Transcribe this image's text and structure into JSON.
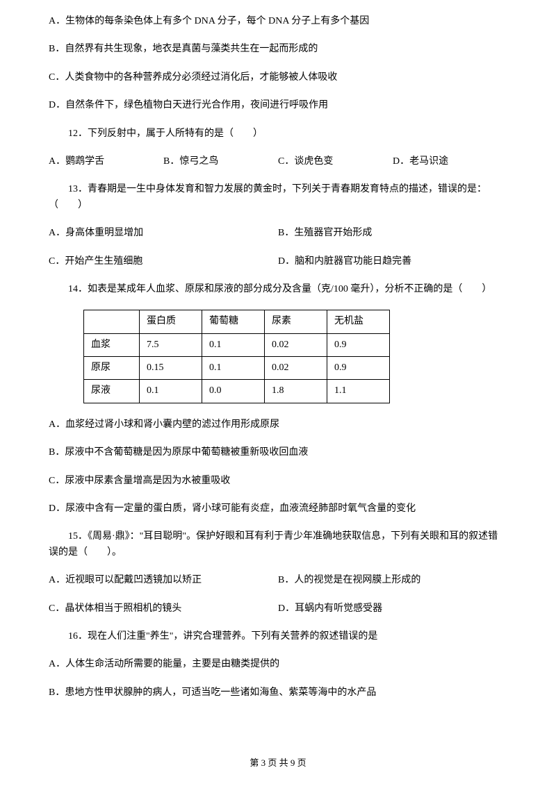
{
  "q11_options": {
    "a": "A．生物体的每条染色体上有多个 DNA 分子，每个 DNA 分子上有多个基因",
    "b": "B．自然界有共生现象，地衣是真菌与藻类共生在一起而形成的",
    "c": "C．人类食物中的各种营养成分必须经过消化后，才能够被人体吸收",
    "d": "D．自然条件下，绿色植物白天进行光合作用，夜间进行呼吸作用"
  },
  "q12": {
    "stem": "12．下列反射中，属于人所特有的是（　　）",
    "a": "A．鹦鹉学舌",
    "b": "B．惊弓之鸟",
    "c": "C．谈虎色变",
    "d": "D．老马识途"
  },
  "q13": {
    "stem": "13．青春期是一生中身体发育和智力发展的黄金时，下列关于青春期发育特点的描述，错误的是：（　　）",
    "a": "A．身高体重明显增加",
    "b": "B．生殖器官开始形成",
    "c": "C．开始产生生殖细胞",
    "d": "D．脑和内脏器官功能日趋完善"
  },
  "q14": {
    "stem": "14．如表是某成年人血浆、原尿和尿液的部分成分及含量（克/100 毫升），分析不正确的是（　　）",
    "headers": [
      "",
      "蛋白质",
      "葡萄糖",
      "尿素",
      "无机盐"
    ],
    "rows": [
      [
        "血浆",
        "7.5",
        "0.1",
        "0.02",
        "0.9"
      ],
      [
        "原尿",
        "0.15",
        "0.1",
        "0.02",
        "0.9"
      ],
      [
        "尿液",
        "0.1",
        "0.0",
        "1.8",
        "1.1"
      ]
    ],
    "a": "A．血浆经过肾小球和肾小囊内壁的滤过作用形成原尿",
    "b": "B．尿液中不含葡萄糖是因为原尿中葡萄糖被重新吸收回血液",
    "c": "C．尿液中尿素含量增高是因为水被重吸收",
    "d": "D．尿液中含有一定量的蛋白质，肾小球可能有炎症，血液流经肺部时氧气含量的变化"
  },
  "q15": {
    "stem": "15．《周易·鼎》：\"耳目聪明\"。保护好眼和耳有利于青少年准确地获取信息，下列有关眼和耳的叙述错误的是（　　）。",
    "a": "A．近视眼可以配戴凹透镜加以矫正",
    "b": "B．人的视觉是在视网膜上形成的",
    "c": "C．晶状体相当于照相机的镜头",
    "d": "D．耳蜗内有听觉感受器"
  },
  "q16": {
    "stem": "16．现在人们注重\"养生\"，讲究合理营养。下列有关营养的叙述错误的是",
    "a": "A．人体生命活动所需要的能量，主要是由糖类提供的",
    "b": "B．患地方性甲状腺肿的病人，可适当吃一些诸如海鱼、紫菜等海中的水产品"
  },
  "footer": "第 3 页 共 9 页"
}
